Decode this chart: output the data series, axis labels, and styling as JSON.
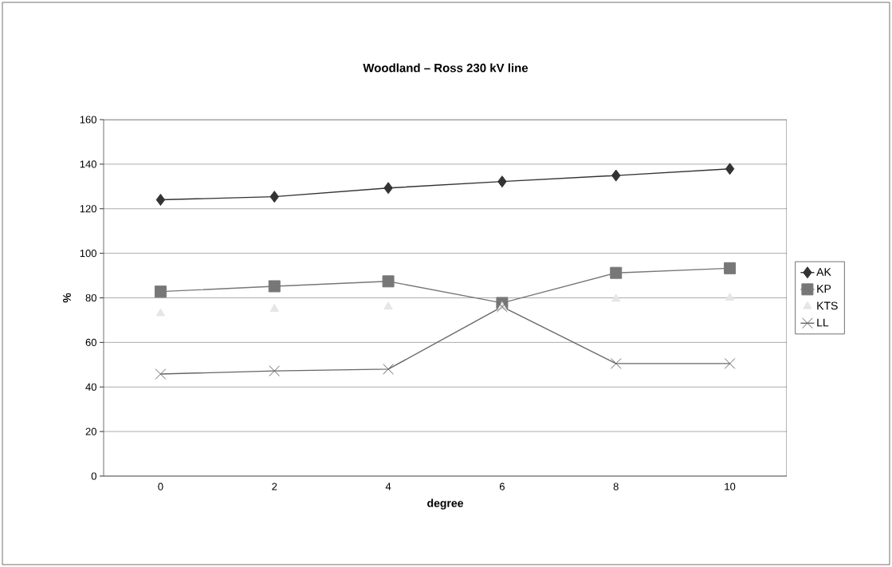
{
  "chart_data": {
    "type": "line",
    "title": "Woodland – Ross 230 kV line",
    "xlabel": "degree",
    "ylabel": "%",
    "categories": [
      "0",
      "2",
      "4",
      "6",
      "8",
      "10"
    ],
    "ylim": [
      0,
      160
    ],
    "yticks": [
      0,
      20,
      40,
      60,
      80,
      100,
      120,
      140,
      160
    ],
    "grid": "y",
    "legend": "right",
    "series": [
      {
        "name": "AK",
        "color": "#333333",
        "marker": "diamond",
        "values": [
          124,
          125.4,
          129.3,
          132.2,
          134.9,
          137.9
        ]
      },
      {
        "name": "KP",
        "color": "#777777",
        "marker": "square",
        "values": [
          82.8,
          85.2,
          87.4,
          77.7,
          91.2,
          93.3
        ]
      },
      {
        "name": "KTS",
        "type": "scatter",
        "color": "#e6e6e6",
        "marker": "triangle",
        "values": [
          73,
          75,
          76,
          76,
          79.5,
          80
        ]
      },
      {
        "name": "LL",
        "color": "#666666",
        "marker": "cross",
        "values": [
          45.8,
          47.2,
          48,
          76,
          50.5,
          50.5
        ]
      }
    ]
  }
}
